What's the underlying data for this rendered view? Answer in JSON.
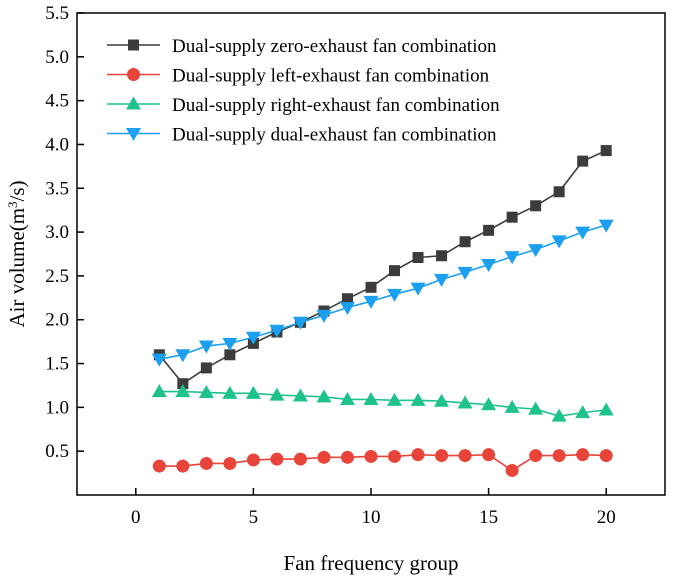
{
  "chart_data": {
    "type": "line",
    "title": "",
    "xlabel": "Fan frequency group",
    "ylabel_main": "Air volume(m",
    "ylabel_sup": "3",
    "ylabel_tail": "/s)",
    "xlim": [
      -2.5,
      22.5
    ],
    "ylim": [
      0.0,
      5.5
    ],
    "xticks": [
      0,
      5,
      10,
      15,
      20
    ],
    "xtick_labels": [
      "0",
      "5",
      "10",
      "15",
      "20"
    ],
    "yticks": [
      0.5,
      1.0,
      1.5,
      2.0,
      2.5,
      3.0,
      3.5,
      4.0,
      4.5,
      5.0,
      5.5
    ],
    "ytick_labels": [
      "0.5",
      "1.0",
      "1.5",
      "2.0",
      "2.5",
      "3.0",
      "3.5",
      "4.0",
      "4.5",
      "5.0",
      "5.5"
    ],
    "legend_position": "top-left",
    "x": [
      1,
      2,
      3,
      4,
      5,
      6,
      7,
      8,
      9,
      10,
      11,
      12,
      13,
      14,
      15,
      16,
      17,
      18,
      19,
      20
    ],
    "series": [
      {
        "name": "Dual-supply zero-exhaust fan combination",
        "color": "#3c3c3c",
        "marker": "square",
        "values": [
          1.6,
          1.27,
          1.45,
          1.6,
          1.73,
          1.86,
          1.97,
          2.1,
          2.24,
          2.37,
          2.56,
          2.71,
          2.73,
          2.89,
          3.02,
          3.17,
          3.3,
          3.46,
          3.81,
          3.93
        ]
      },
      {
        "name": "Dual-supply left-exhaust fan combination",
        "color": "#e8443a",
        "marker": "circle",
        "values": [
          0.33,
          0.33,
          0.36,
          0.36,
          0.4,
          0.41,
          0.41,
          0.43,
          0.43,
          0.44,
          0.44,
          0.46,
          0.45,
          0.45,
          0.46,
          0.28,
          0.45,
          0.45,
          0.46,
          0.45
        ]
      },
      {
        "name": "Dual-supply right-exhaust fan combination",
        "color": "#1fc28a",
        "marker": "triangle-up",
        "values": [
          1.18,
          1.18,
          1.17,
          1.16,
          1.16,
          1.14,
          1.13,
          1.12,
          1.09,
          1.09,
          1.08,
          1.08,
          1.07,
          1.05,
          1.03,
          1.0,
          0.98,
          0.9,
          0.94,
          0.97
        ]
      },
      {
        "name": "Dual-supply dual-exhaust fan combination",
        "color": "#1b9ff0",
        "marker": "triangle-down",
        "values": [
          1.55,
          1.6,
          1.7,
          1.73,
          1.8,
          1.88,
          1.97,
          2.05,
          2.14,
          2.21,
          2.29,
          2.36,
          2.46,
          2.54,
          2.63,
          2.72,
          2.8,
          2.9,
          3.0,
          3.08
        ]
      }
    ]
  }
}
